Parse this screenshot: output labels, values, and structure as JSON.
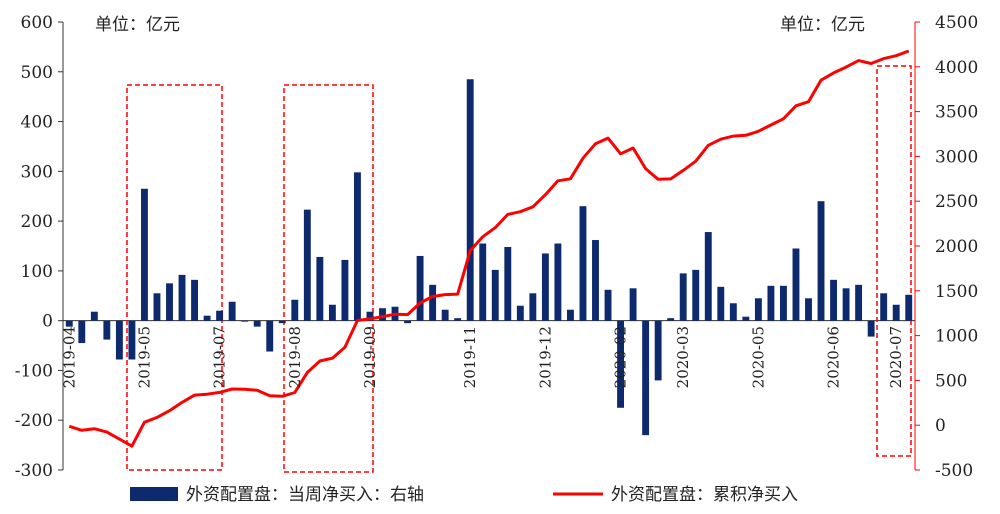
{
  "chart_data": {
    "type": "bar+line",
    "unit_left": "单位：亿元",
    "unit_right": "单位：亿元",
    "left_axis": {
      "min": -300,
      "max": 600,
      "ticks": [
        "-300",
        "-200",
        "-100",
        "0",
        "100",
        "200",
        "300",
        "400",
        "500",
        "600"
      ]
    },
    "right_axis": {
      "min": -500,
      "max": 4500,
      "ticks": [
        "-500",
        "0",
        "500",
        "1000",
        "1500",
        "2000",
        "2500",
        "3000",
        "3500",
        "4000",
        "4500"
      ]
    },
    "x_tick_labels": [
      "2019-04",
      "2019-05",
      "2019-07",
      "2019-08",
      "2019-09",
      "2019-11",
      "2019-12",
      "2020-02",
      "2020-03",
      "2020-05",
      "2020-06",
      "2020-07"
    ],
    "bar_series": {
      "name": "外资配置盘：当周净买入：右轴",
      "color": "#0d2a6e",
      "values": [
        -12,
        -45,
        18,
        -38,
        -78,
        -78,
        265,
        55,
        75,
        92,
        82,
        10,
        20,
        38,
        -2,
        -12,
        -62,
        -5,
        42,
        223,
        128,
        32,
        122,
        298,
        18,
        25,
        28,
        -5,
        130,
        72,
        22,
        5,
        485,
        155,
        102,
        148,
        30,
        55,
        135,
        155,
        22,
        230,
        162,
        62,
        -175,
        65,
        -230,
        -120,
        5,
        95,
        102,
        178,
        68,
        35,
        8,
        45,
        70,
        70,
        145,
        45,
        240,
        82,
        65,
        72,
        -32,
        55,
        32,
        52
      ]
    },
    "line_series": {
      "name": "外资配置盘：累积净买入",
      "color": "#ff0000",
      "values": [
        -12,
        -57,
        -39,
        -77,
        -155,
        -233,
        32,
        87,
        162,
        254,
        336,
        346,
        366,
        404,
        402,
        390,
        328,
        323,
        365,
        588,
        716,
        748,
        870,
        1168,
        1186,
        1211,
        1239,
        1234,
        1364,
        1436,
        1458,
        1463,
        1948,
        2103,
        2205,
        2353,
        2383,
        2438,
        2573,
        2728,
        2750,
        2980,
        3142,
        3204,
        3029,
        3094,
        2864,
        2744,
        2749,
        2844,
        2946,
        3124,
        3192,
        3227,
        3235,
        3280,
        3350,
        3420,
        3565,
        3610,
        3850,
        3932,
        3997,
        4069,
        4037,
        4092,
        4124,
        4176
      ]
    },
    "highlight_boxes_note": "",
    "grid": false,
    "legend_position": "bottom"
  }
}
